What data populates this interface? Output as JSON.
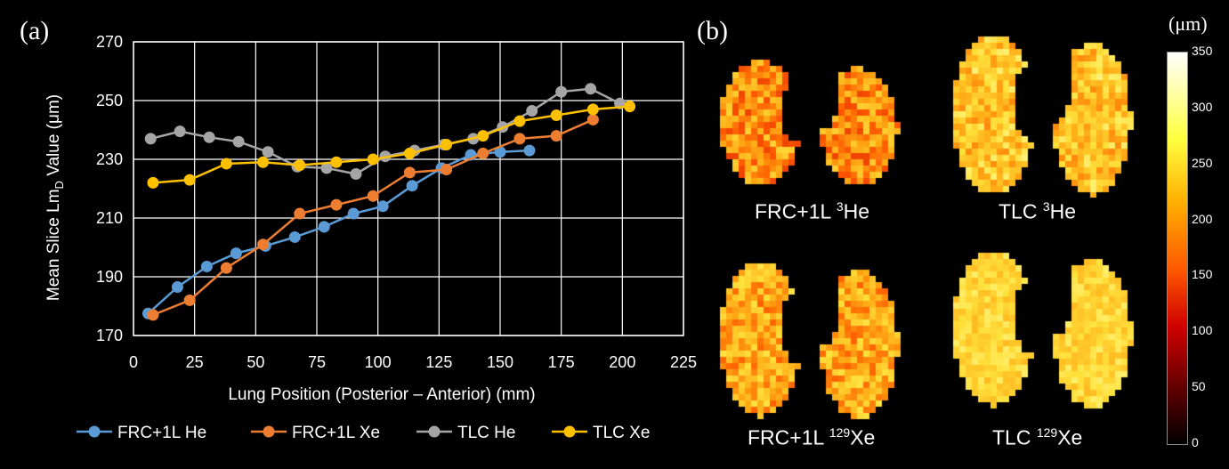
{
  "panel_a_label": "(a)",
  "panel_b_label": "(b)",
  "chart_data": {
    "type": "line",
    "xlabel": "Lung Position (Posterior – Anterior) (mm)",
    "ylabel": {
      "prefix": "Mean Slice Lm",
      "sub": "D",
      "suffix": " Value (μm)"
    },
    "xlim": [
      0,
      225
    ],
    "ylim": [
      170,
      270
    ],
    "xticks": [
      0,
      25,
      50,
      75,
      100,
      125,
      150,
      175,
      200,
      225
    ],
    "yticks": [
      170,
      190,
      210,
      230,
      250,
      270
    ],
    "grid": true,
    "legend_position": "bottom",
    "series": [
      {
        "name": "FRC+1L He",
        "color": "#5b9bd5",
        "x": [
          6,
          18,
          30,
          42,
          54,
          66,
          78,
          90,
          102,
          114,
          126,
          138,
          150,
          162
        ],
        "y": [
          177.5,
          186.5,
          193.5,
          198,
          200.5,
          203.5,
          207,
          211.5,
          214,
          221,
          227,
          231.5,
          232.5,
          233
        ]
      },
      {
        "name": "FRC+1L Xe",
        "color": "#ed7d31",
        "x": [
          8,
          23,
          38,
          53,
          68,
          83,
          98,
          113,
          128,
          143,
          158,
          173,
          188
        ],
        "y": [
          177,
          182,
          193,
          201,
          211.5,
          214.5,
          217.5,
          225.5,
          226.5,
          232,
          237,
          238,
          243.5
        ]
      },
      {
        "name": "TLC He",
        "color": "#a5a5a5",
        "x": [
          7,
          19,
          31,
          43,
          55,
          67,
          79,
          91,
          103,
          115,
          127,
          139,
          151,
          163,
          175,
          187,
          199
        ],
        "y": [
          237,
          239.5,
          237.5,
          236,
          232.5,
          227.5,
          227,
          225,
          231,
          233,
          235,
          237,
          241,
          246.5,
          253,
          254,
          249
        ]
      },
      {
        "name": "TLC Xe",
        "color": "#ffc000",
        "x": [
          8,
          23,
          38,
          53,
          68,
          83,
          98,
          113,
          128,
          143,
          158,
          173,
          188,
          203
        ],
        "y": [
          222,
          223,
          228.5,
          229,
          228,
          229,
          230,
          232,
          235,
          238,
          243,
          245,
          247,
          248
        ]
      }
    ]
  },
  "maps": [
    {
      "caption_prefix": "FRC+1L ",
      "sup": "3",
      "caption_suffix": "He"
    },
    {
      "caption_prefix": "TLC ",
      "sup": "3",
      "caption_suffix": "He"
    },
    {
      "caption_prefix": "FRC+1L ",
      "sup": "129",
      "caption_suffix": "Xe"
    },
    {
      "caption_prefix": "TLC ",
      "sup": "129",
      "caption_suffix": "Xe"
    }
  ],
  "colorbar": {
    "unit": "(μm)",
    "ticks": [
      "350",
      "300",
      "250",
      "200",
      "150",
      "100",
      "50",
      "0"
    ]
  }
}
